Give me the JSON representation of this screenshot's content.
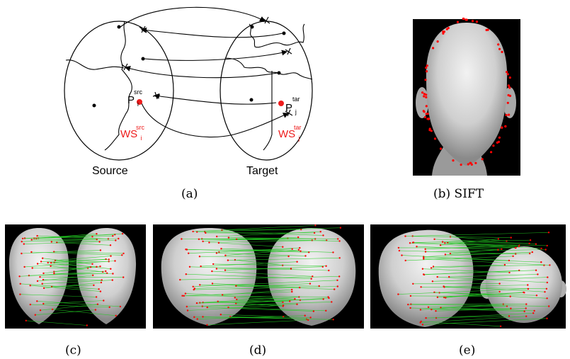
{
  "panel_a": {
    "caption": "(a)",
    "source_label": "Source",
    "target_label": "Target",
    "p_src": {
      "base": "P",
      "sub": "i",
      "sup": "src"
    },
    "p_tar": {
      "base": "P",
      "sub": "j",
      "sup": "tar"
    },
    "ws_src": {
      "base": "WS",
      "sub": "i",
      "sup": "src"
    },
    "ws_tar": {
      "base": "WS",
      "sub": "j",
      "sup": "tar"
    },
    "highlight_color": "#ee1c1c",
    "line_color": "#000000"
  },
  "panel_b": {
    "caption": "(b) SIFT",
    "keypoint_color": "#ff0000"
  },
  "panel_c": {
    "caption": "(c)"
  },
  "panel_d": {
    "caption": "(d)"
  },
  "panel_e": {
    "caption": "(e)"
  },
  "match_line_color": "#22cc22",
  "keypoint_color": "#ff0000"
}
